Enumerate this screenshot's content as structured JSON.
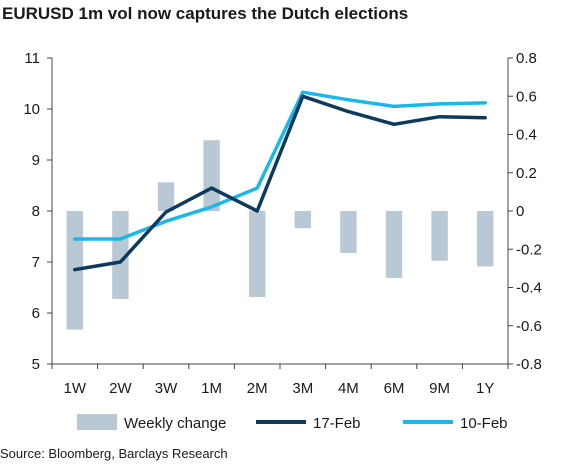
{
  "title": "EURUSD 1m vol now captures the Dutch elections",
  "source": "Source: Bloomberg, Barclays Research",
  "colors": {
    "bar": "#b8c8d4",
    "line_17feb": "#0d3a5c",
    "line_10feb": "#1ab8e8",
    "axis": "#444444"
  },
  "chart_data": {
    "type": "bar+line",
    "categories": [
      "1W",
      "2W",
      "3W",
      "1M",
      "2M",
      "3M",
      "4M",
      "6M",
      "9M",
      "1Y"
    ],
    "left_axis": {
      "ylim": [
        5,
        11
      ],
      "ticks": [
        "5",
        "6",
        "7",
        "8",
        "9",
        "10",
        "11"
      ]
    },
    "right_axis": {
      "ylim": [
        -0.8,
        0.8
      ],
      "ticks": [
        "-0.8",
        "-0.6",
        "-0.4",
        "-0.2",
        "0",
        "0.2",
        "0.4",
        "0.6",
        "0.8"
      ]
    },
    "series": [
      {
        "name": "Weekly change",
        "type": "bar",
        "axis": "right",
        "values": [
          -0.62,
          -0.46,
          0.15,
          0.37,
          -0.45,
          -0.09,
          -0.22,
          -0.35,
          -0.26,
          -0.29
        ]
      },
      {
        "name": "17-Feb",
        "type": "line",
        "axis": "left",
        "values": [
          6.85,
          7.0,
          7.98,
          8.45,
          8.0,
          10.25,
          9.95,
          9.7,
          9.85,
          9.83
        ]
      },
      {
        "name": "10-Feb",
        "type": "line",
        "axis": "left",
        "values": [
          7.45,
          7.45,
          7.8,
          8.08,
          8.45,
          10.33,
          10.18,
          10.05,
          10.1,
          10.12
        ]
      }
    ],
    "legend": {
      "position": "bottom",
      "items": [
        "Weekly change",
        "17-Feb",
        "10-Feb"
      ]
    },
    "grid": false
  }
}
